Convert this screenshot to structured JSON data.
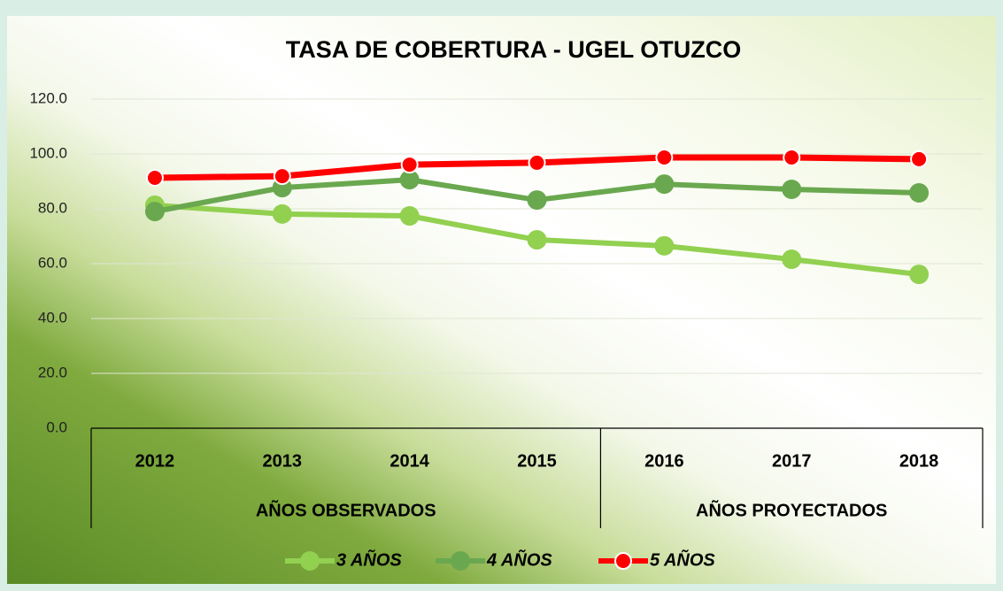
{
  "chart_data": {
    "type": "line",
    "title": "TASA DE COBERTURA - UGEL OTUZCO",
    "categories": [
      "2012",
      "2013",
      "2014",
      "2015",
      "2016",
      "2017",
      "2018"
    ],
    "groups": [
      {
        "label": "AÑOS OBSERVADOS",
        "size": 4
      },
      {
        "label": "AÑOS PROYECTADOS",
        "size": 3
      }
    ],
    "series": [
      {
        "name": "3 AÑOS",
        "color": "#92d050",
        "values": [
          81.3,
          78.1,
          77.4,
          68.7,
          66.5,
          61.6,
          56.1
        ]
      },
      {
        "name": "4 AÑOS",
        "color": "#6aa84f",
        "values": [
          79.0,
          87.7,
          90.6,
          83.2,
          89.0,
          87.1,
          85.8
        ]
      },
      {
        "name": "5 AÑOS",
        "color": "#ff0000",
        "values": [
          91.3,
          91.9,
          96.1,
          96.8,
          98.7,
          98.7,
          98.1
        ]
      }
    ],
    "ylim": [
      0,
      120
    ],
    "yticks": [
      {
        "value": 0,
        "label": "0.0"
      },
      {
        "value": 20,
        "label": "20.0"
      },
      {
        "value": 40,
        "label": "40.0"
      },
      {
        "value": 60,
        "label": "60.0"
      },
      {
        "value": 80,
        "label": "80.0"
      },
      {
        "value": 100,
        "label": "100.0"
      },
      {
        "value": 120,
        "label": "120.0"
      }
    ],
    "grid": true
  }
}
